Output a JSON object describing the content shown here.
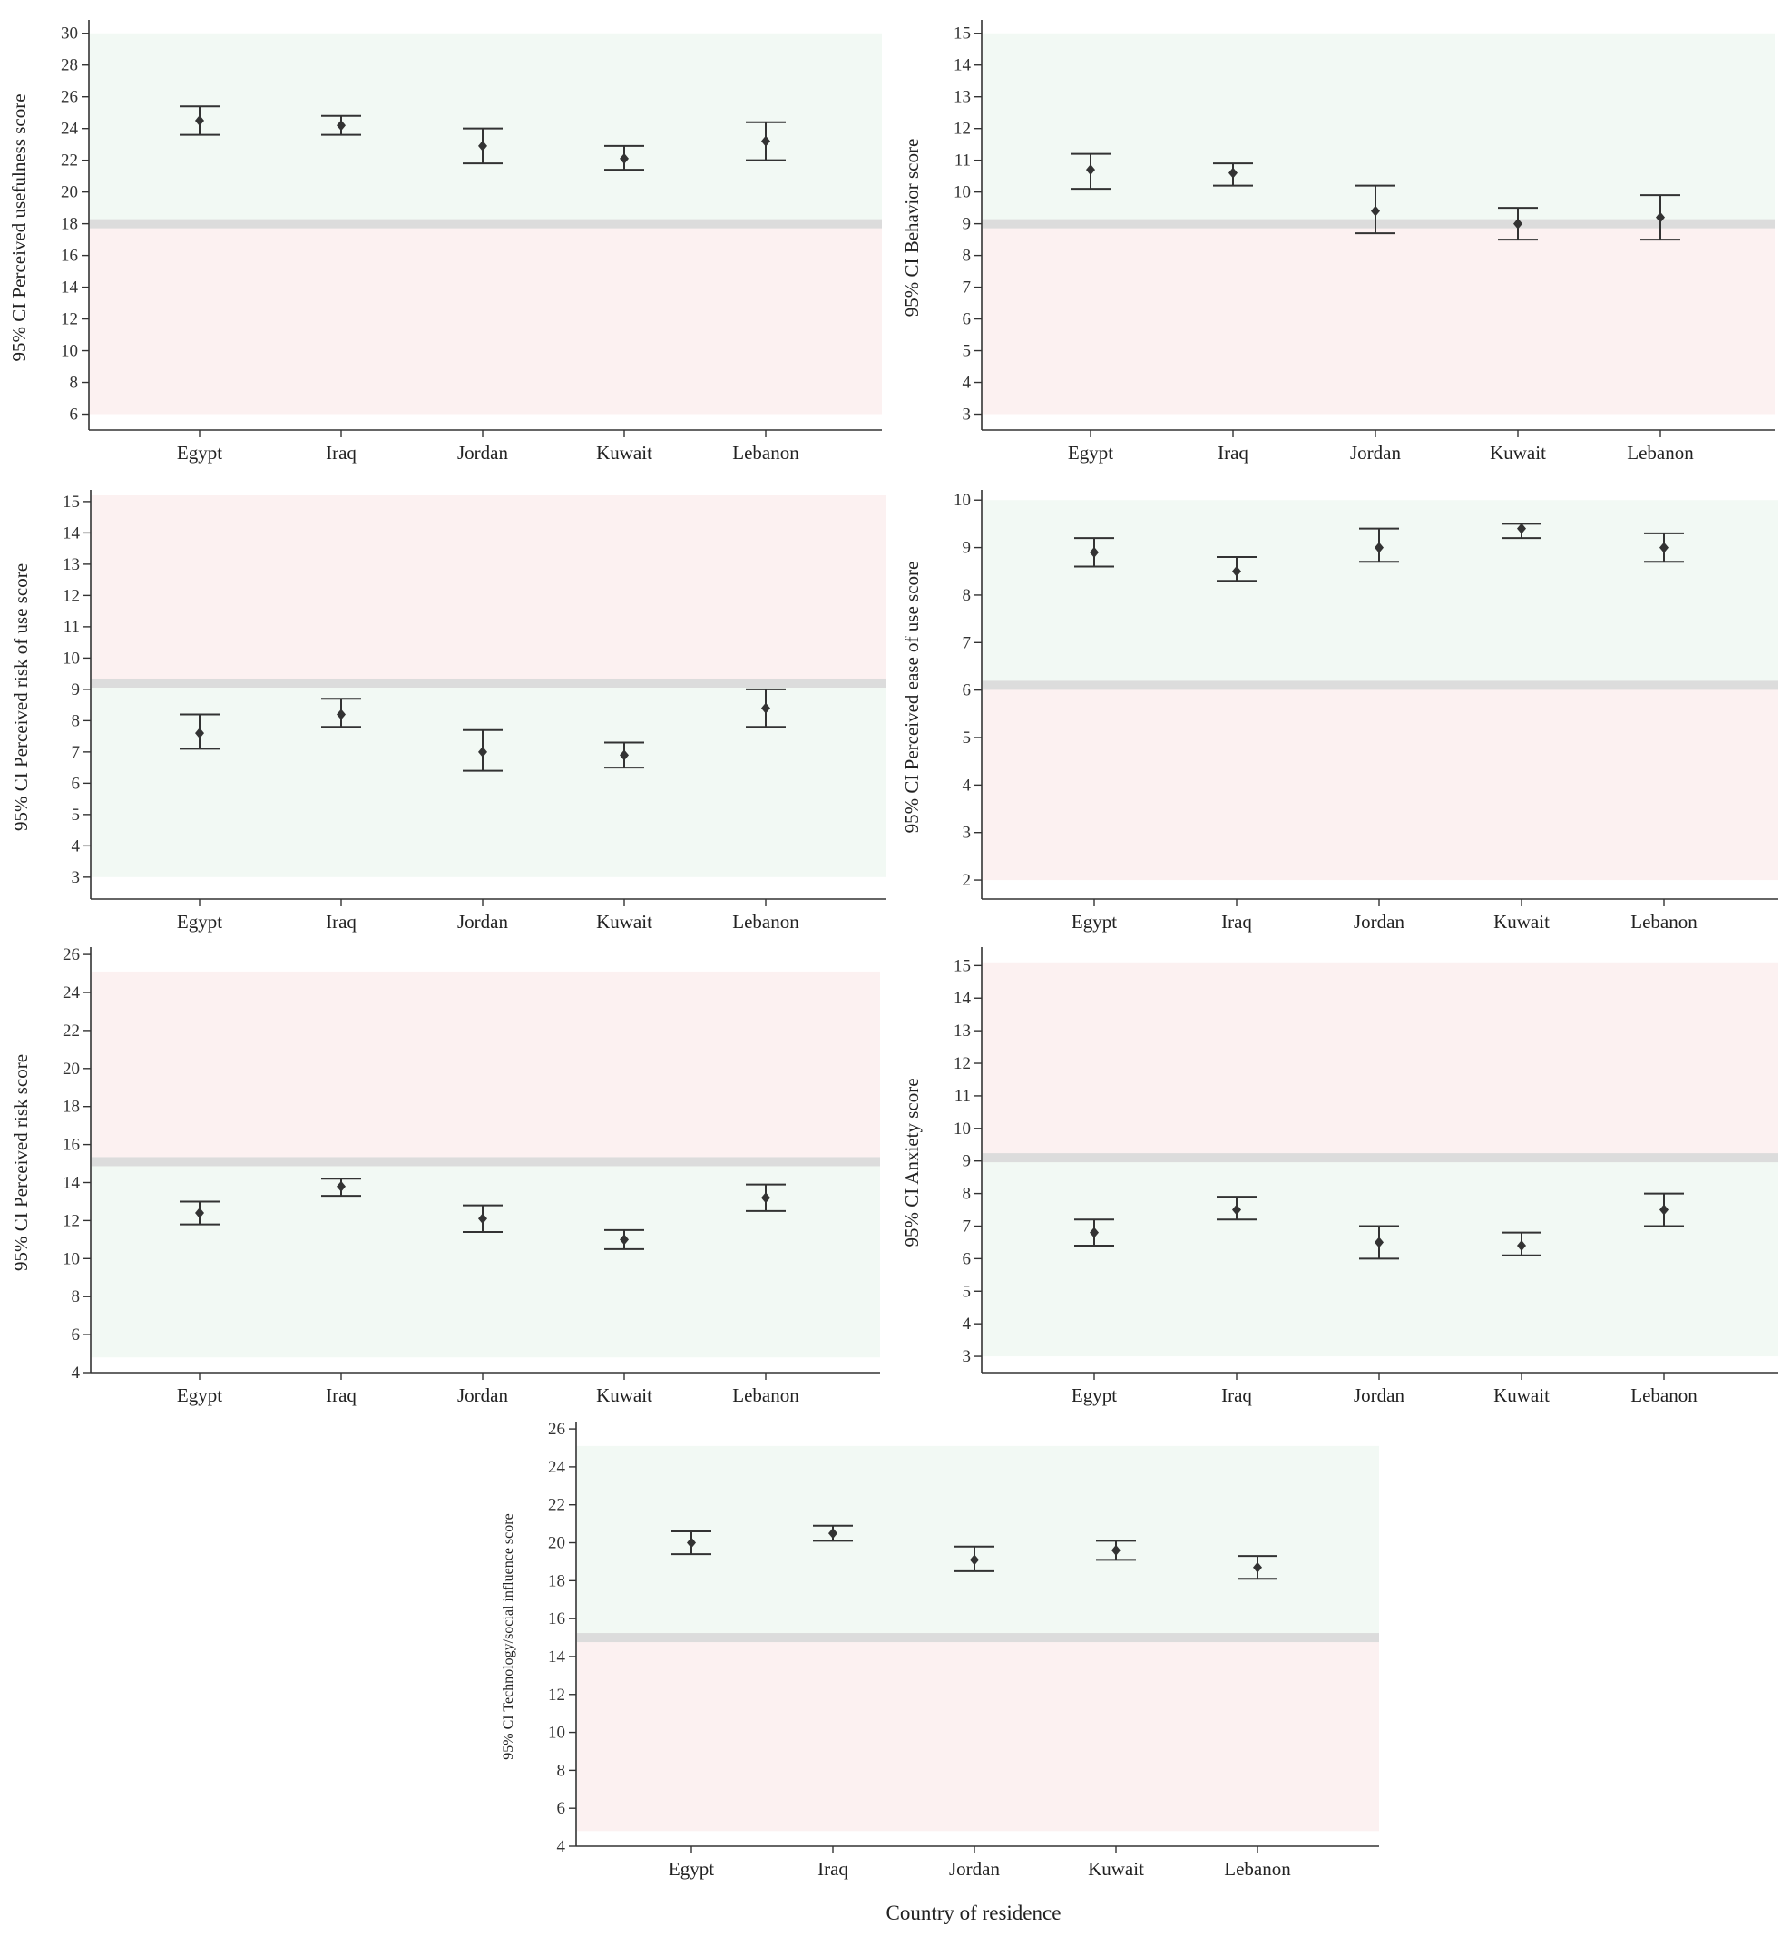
{
  "x_axis_title": "Country of residence",
  "colors": {
    "green_zone": "#f2f9f4",
    "red_zone": "#fcf1f1",
    "threshold": "#dcdcdc",
    "ink": "#333333"
  },
  "chart_data": [
    {
      "type": "errorbar",
      "ylabel": "95% CI Perceived usefulness score",
      "categories": [
        "Egypt",
        "Iraq",
        "Jordan",
        "Kuwait",
        "Lebanon"
      ],
      "ylim": [
        5,
        30.5
      ],
      "yticks": [
        6,
        8,
        10,
        12,
        14,
        16,
        18,
        20,
        22,
        24,
        26,
        28,
        30
      ],
      "threshold": 18,
      "upper_zone": "green",
      "zones": [
        6,
        30
      ],
      "mean": [
        24.5,
        24.2,
        22.9,
        22.1,
        23.2
      ],
      "lower": [
        23.6,
        23.6,
        21.8,
        21.4,
        22.0
      ],
      "upper": [
        25.4,
        24.8,
        24.0,
        22.9,
        24.4
      ]
    },
    {
      "type": "errorbar",
      "ylabel": "95% CI Behavior score",
      "categories": [
        "Egypt",
        "Iraq",
        "Jordan",
        "Kuwait",
        "Lebanon"
      ],
      "ylim": [
        2.5,
        15.25
      ],
      "yticks": [
        3,
        4,
        5,
        6,
        7,
        8,
        9,
        10,
        11,
        12,
        13,
        14,
        15
      ],
      "threshold": 9,
      "upper_zone": "green",
      "zones": [
        3,
        15
      ],
      "mean": [
        10.7,
        10.6,
        9.4,
        9.0,
        9.2
      ],
      "lower": [
        10.1,
        10.2,
        8.7,
        8.5,
        8.5
      ],
      "upper": [
        11.2,
        10.9,
        10.2,
        9.5,
        9.9
      ]
    },
    {
      "type": "errorbar",
      "ylabel": "95% CI Perceived risk of use score",
      "categories": [
        "Egypt",
        "Iraq",
        "Jordan",
        "Kuwait",
        "Lebanon"
      ],
      "ylim": [
        2.3,
        15.2
      ],
      "yticks": [
        3,
        4,
        5,
        6,
        7,
        8,
        9,
        10,
        11,
        12,
        13,
        14,
        15
      ],
      "threshold": 9.2,
      "upper_zone": "red",
      "zones": [
        3,
        15.2
      ],
      "mean": [
        7.6,
        8.2,
        7.0,
        6.9,
        8.4
      ],
      "lower": [
        7.1,
        7.8,
        6.4,
        6.5,
        7.8
      ],
      "upper": [
        8.2,
        8.7,
        7.7,
        7.3,
        9.0
      ]
    },
    {
      "type": "errorbar",
      "ylabel": "95% CI Perceived ease of use score",
      "categories": [
        "Egypt",
        "Iraq",
        "Jordan",
        "Kuwait",
        "Lebanon"
      ],
      "ylim": [
        1.6,
        10.1
      ],
      "yticks": [
        2,
        3,
        4,
        5,
        6,
        7,
        8,
        9,
        10
      ],
      "threshold": 6.1,
      "upper_zone": "green",
      "zones": [
        2,
        10
      ],
      "mean": [
        8.9,
        8.5,
        9.0,
        9.4,
        9.0
      ],
      "lower": [
        8.6,
        8.3,
        8.7,
        9.2,
        8.7
      ],
      "upper": [
        9.2,
        8.8,
        9.4,
        9.5,
        9.3
      ]
    },
    {
      "type": "errorbar",
      "ylabel": "95% CI Perceived risk score",
      "categories": [
        "Egypt",
        "Iraq",
        "Jordan",
        "Kuwait",
        "Lebanon"
      ],
      "ylim": [
        4,
        26.1
      ],
      "yticks": [
        4,
        6,
        8,
        10,
        12,
        14,
        16,
        18,
        20,
        22,
        24,
        26
      ],
      "threshold": 15.1,
      "upper_zone": "red",
      "zones": [
        4.8,
        25.1
      ],
      "mean": [
        12.4,
        13.8,
        12.1,
        11.0,
        13.2
      ],
      "lower": [
        11.8,
        13.3,
        11.4,
        10.5,
        12.5
      ],
      "upper": [
        13.0,
        14.2,
        12.8,
        11.5,
        13.9
      ]
    },
    {
      "type": "errorbar",
      "ylabel": "95% CI Anxiety score",
      "categories": [
        "Egypt",
        "Iraq",
        "Jordan",
        "Kuwait",
        "Lebanon"
      ],
      "ylim": [
        2.5,
        15.4
      ],
      "yticks": [
        3,
        4,
        5,
        6,
        7,
        8,
        9,
        10,
        11,
        12,
        13,
        14,
        15
      ],
      "threshold": 9.1,
      "upper_zone": "red",
      "zones": [
        3,
        15.1
      ],
      "mean": [
        6.8,
        7.5,
        6.5,
        6.4,
        7.5
      ],
      "lower": [
        6.4,
        7.2,
        6.0,
        6.1,
        7.0
      ],
      "upper": [
        7.2,
        7.9,
        7.0,
        6.8,
        8.0
      ]
    },
    {
      "type": "errorbar",
      "ylabel": "95% CI Technology/social influence score",
      "categories": [
        "Egypt",
        "Iraq",
        "Jordan",
        "Kuwait",
        "Lebanon"
      ],
      "ylim": [
        4,
        26.1
      ],
      "yticks": [
        4,
        6,
        8,
        10,
        12,
        14,
        16,
        18,
        20,
        22,
        24,
        26
      ],
      "threshold": 15,
      "upper_zone": "green",
      "zones": [
        4.8,
        25.1
      ],
      "mean": [
        20.0,
        20.5,
        19.1,
        19.6,
        18.7
      ],
      "lower": [
        19.4,
        20.1,
        18.5,
        19.1,
        18.1
      ],
      "upper": [
        20.6,
        20.9,
        19.8,
        20.1,
        19.3
      ]
    }
  ]
}
